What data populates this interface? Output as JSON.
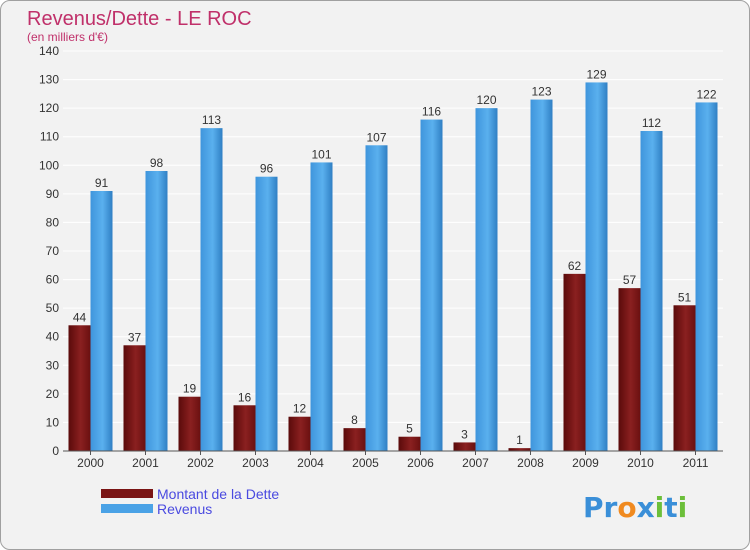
{
  "colors": {
    "debt": "#7a1414",
    "revenue": "#4aa2e6",
    "title": "#c0306a",
    "legend_text": "#4a4ae0",
    "grid": "#ffffff",
    "background": "#f2f2f2"
  },
  "brand": {
    "name": "Proxiti",
    "letters": [
      "P",
      "r",
      "o",
      "x",
      "i",
      "t",
      "i"
    ],
    "letter_colors": [
      "#3a8fd8",
      "#3a8fd8",
      "#f08a20",
      "#3a8fd8",
      "#6cbf3a",
      "#3a8fd8",
      "#6cbf3a"
    ]
  },
  "chart_data": {
    "type": "bar",
    "title": "Revenus/Dette - LE ROC",
    "subtitle": "(en milliers d'€)",
    "xlabel": "",
    "ylabel": "",
    "ylim": [
      0,
      140
    ],
    "yticks": [
      0,
      10,
      20,
      30,
      40,
      50,
      60,
      70,
      80,
      90,
      100,
      110,
      120,
      130,
      140
    ],
    "grid": true,
    "legend_position": "bottom-left",
    "categories": [
      "2000",
      "2001",
      "2002",
      "2003",
      "2004",
      "2005",
      "2006",
      "2007",
      "2008",
      "2009",
      "2010",
      "2011"
    ],
    "series": [
      {
        "name": "Montant de la Dette",
        "color": "#7a1414",
        "values": [
          44,
          37,
          19,
          16,
          12,
          8,
          5,
          3,
          1,
          62,
          57,
          51
        ]
      },
      {
        "name": "Revenus",
        "color": "#4aa2e6",
        "values": [
          91,
          98,
          113,
          96,
          101,
          107,
          116,
          120,
          123,
          129,
          112,
          122
        ]
      }
    ]
  }
}
